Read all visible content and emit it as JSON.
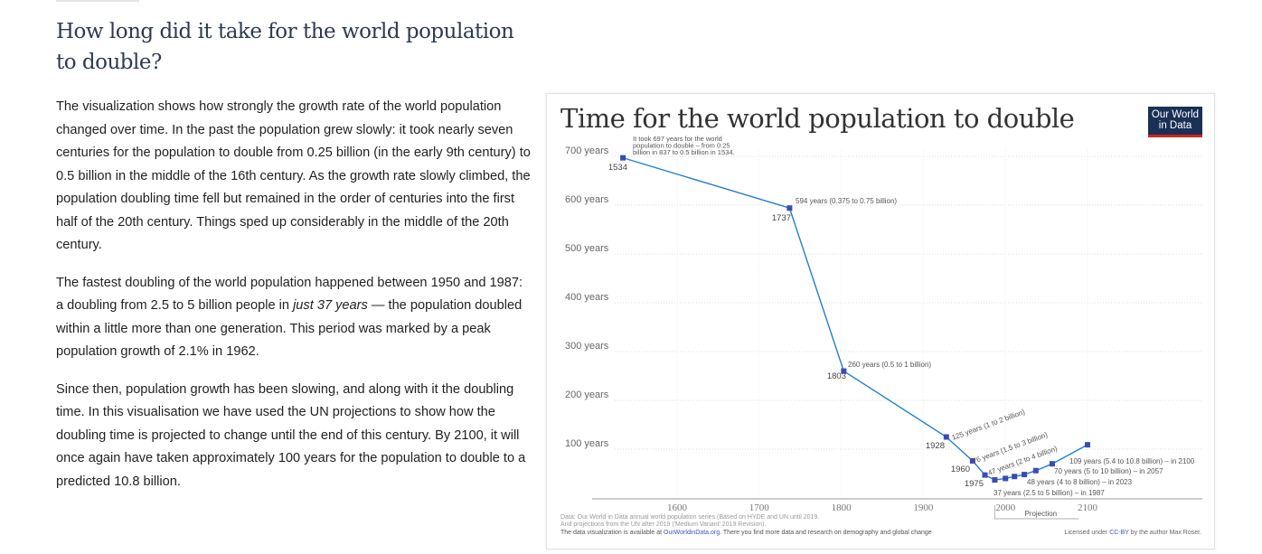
{
  "article": {
    "heading": "How long did it take for the world population to double?",
    "paragraphs": [
      [
        "The visualization shows how strongly the growth rate of the world population changed over time. In the past the population grew slowly: it took nearly seven centuries for the population to double from 0.25 billion (in the early 9th century) to 0.5 billion in the middle of the 16th century. As the growth rate slowly climbed, the population doubling time fell but remained in the order of centuries into the first half of the 20th century. Things sped up considerably in the middle of the 20th century."
      ],
      [
        "The fastest doubling of the world population happened between 1950 and 1987: a doubling from 2.5 to 5 billion people in ",
        "just 37 years",
        " — the population doubled within a little more than one generation. This period was marked by a peak population growth of 2.1% in 1962."
      ],
      [
        "Since then, population growth has been slowing, and along with it the doubling time. In this visualisation we have used the UN projections to show how the doubling time is projected to change until the end of this century. By 2100, it will once again have taken approximately 100 years for the population to double to a predicted 10.8 billion."
      ]
    ]
  },
  "chart_data": {
    "type": "line",
    "title": "Time for the world population to double",
    "logo": "Our World in Data",
    "xlim": [
      1500,
      2120
    ],
    "ylim": [
      0,
      720
    ],
    "x_ticks": [
      "1600",
      "1700",
      "1800",
      "1900",
      "2000",
      "2100"
    ],
    "y_ticks": [
      "100 years",
      "200 years",
      "300 years",
      "400 years",
      "500 years",
      "600 years",
      "700 years"
    ],
    "grid": true,
    "color": "#1f7ed6",
    "marker_color": "#3a4bb3",
    "points": [
      {
        "x": 1534,
        "y": 697,
        "year_label": "1534",
        "label": ""
      },
      {
        "x": 1737,
        "y": 594,
        "year_label": "1737",
        "label": "594 years (0.375 to 0.75 billion)"
      },
      {
        "x": 1803,
        "y": 260,
        "year_label": "1803",
        "label": "260 years (0.5 to 1 billion)"
      },
      {
        "x": 1928,
        "y": 125,
        "year_label": "1928",
        "label": "125 years (1 to 2 billion)"
      },
      {
        "x": 1960,
        "y": 76,
        "year_label": "1960",
        "label": "76 years (1.5 to 3 billion)"
      },
      {
        "x": 1975,
        "y": 47,
        "year_label": "1975",
        "label": "47 years (2 to 4 billion)"
      },
      {
        "x": 1987,
        "y": 37,
        "year_label": "",
        "label": "37 years (2.5 to 5 billion) – in 1987"
      },
      {
        "x": 2000,
        "y": 40,
        "year_label": "",
        "label": ""
      },
      {
        "x": 2011,
        "y": 44,
        "year_label": "",
        "label": ""
      },
      {
        "x": 2023,
        "y": 48,
        "year_label": "",
        "label": "48 years (4 to 8 billion) – in 2023"
      },
      {
        "x": 2037,
        "y": 56,
        "year_label": "",
        "label": ""
      },
      {
        "x": 2057,
        "y": 70,
        "year_label": "",
        "label": "70 years (5 to 10 billion) – in 2057"
      },
      {
        "x": 2100,
        "y": 109,
        "year_label": "",
        "label": "109 years (5.4 to 10.8 billion) – in 2100"
      }
    ],
    "annotation": [
      "It took 697 years for the world",
      "population to double – from 0.25",
      "billion in 837 to 0.5 billion in 1534."
    ],
    "projection_label": "Projection",
    "source_lines": [
      "Data: Our World in Data annual world population series (Based on HYDE and UN until 2019.",
      "And projections from the UN after 2019 ('Medium Variant' 2019 Revision)."
    ],
    "footer_pre": "The data visualization is available at ",
    "footer_link": "OurWorldinData.org",
    "footer_post": ". There you find more data and research on demography and global change",
    "license_pre": "Licensed under ",
    "license_link": "CC-BY",
    "license_post": " by the author Max Roser."
  }
}
